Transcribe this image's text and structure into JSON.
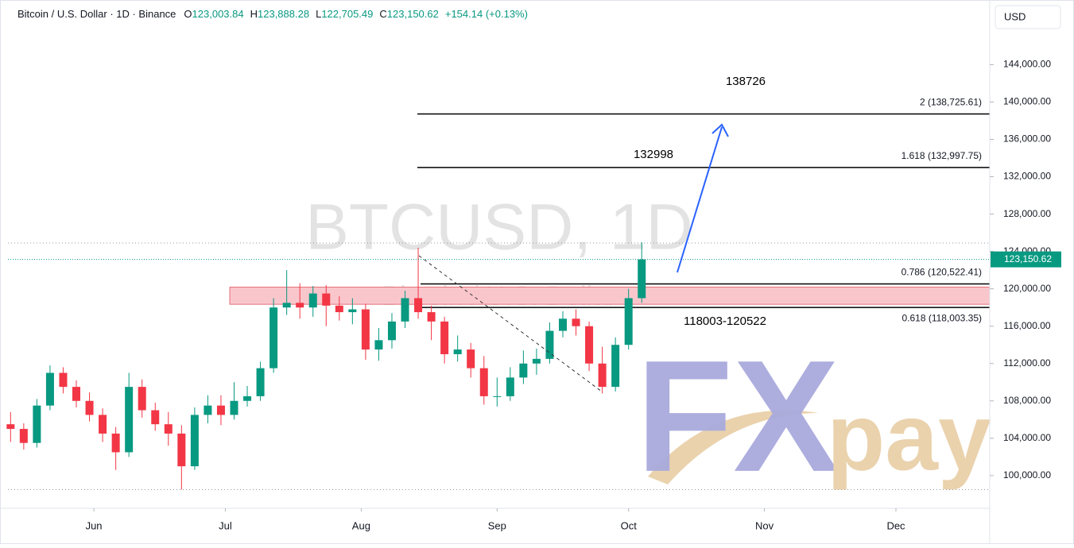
{
  "header": {
    "title": "Bitcoin / U.S. Dollar · 1D · Binance",
    "ohlc": [
      {
        "key": "O",
        "value": "123,003.84"
      },
      {
        "key": "H",
        "value": "123,888.28"
      },
      {
        "key": "L",
        "value": "122,705.49"
      },
      {
        "key": "C",
        "value": "123,150.62"
      }
    ],
    "change": "+154.14 (+0.13%)"
  },
  "currency": "USD",
  "watermark": {
    "symbol": "BTCUSD, 1D",
    "name": "Bitcoin / U.S. Dollar"
  },
  "logo": {
    "left": "FX",
    "right": "pay"
  },
  "chart_data": {
    "type": "candlestick",
    "up_color": "#089981",
    "down_color": "#f23645",
    "x": [
      0,
      3,
      6,
      9,
      12,
      15,
      18,
      21,
      24,
      27,
      30,
      33,
      36,
      39,
      42,
      45,
      48,
      51,
      54,
      57,
      60,
      63,
      66,
      69,
      72,
      75,
      78,
      81,
      84,
      87,
      90,
      93,
      96,
      99,
      102,
      105,
      108,
      111,
      114,
      117,
      120,
      123,
      126,
      129,
      132,
      135,
      138,
      141,
      144
    ],
    "open": [
      105500,
      105000,
      103500,
      107500,
      111000,
      109500,
      108000,
      106500,
      104500,
      102500,
      109500,
      107000,
      105500,
      104500,
      101000,
      106500,
      107500,
      106500,
      108000,
      108500,
      111500,
      118000,
      118500,
      118000,
      119500,
      118200,
      117500,
      117800,
      113500,
      114500,
      116500,
      119000,
      117500,
      116500,
      113000,
      113500,
      111500,
      108500,
      108500,
      110500,
      112000,
      112500,
      115500,
      116800,
      116000,
      112000,
      109500,
      114000,
      119000
    ],
    "high": [
      106800,
      105600,
      108200,
      111800,
      111600,
      110200,
      108900,
      107200,
      105200,
      111000,
      110300,
      107800,
      106800,
      105400,
      107300,
      108600,
      108600,
      110000,
      109600,
      112200,
      119000,
      122000,
      120600,
      120300,
      120400,
      119200,
      119000,
      118400,
      115800,
      117400,
      119800,
      124400,
      118200,
      117000,
      115000,
      114200,
      112800,
      110500,
      111600,
      113400,
      113600,
      116400,
      117600,
      117800,
      116500,
      113800,
      114800,
      120000,
      125000
    ],
    "low": [
      103600,
      102800,
      103000,
      107000,
      108800,
      107300,
      105800,
      103600,
      100600,
      102000,
      106200,
      104800,
      103200,
      98500,
      100600,
      105600,
      105400,
      106000,
      107400,
      108000,
      111000,
      117200,
      116800,
      117000,
      116000,
      116600,
      116200,
      112400,
      112300,
      113600,
      115800,
      116800,
      114500,
      112000,
      112200,
      110500,
      107600,
      107400,
      108000,
      109800,
      110800,
      112000,
      114800,
      115000,
      111200,
      108800,
      109000,
      113500,
      118500
    ],
    "close": [
      105000,
      103500,
      107500,
      111000,
      109500,
      108000,
      106500,
      104500,
      102500,
      109500,
      107000,
      105500,
      104500,
      101000,
      106500,
      107500,
      106500,
      108000,
      108500,
      111500,
      118000,
      118500,
      118000,
      119500,
      118200,
      117500,
      117800,
      113500,
      114500,
      116500,
      119000,
      117500,
      116500,
      113000,
      113500,
      111500,
      108500,
      108500,
      110500,
      112000,
      112500,
      115500,
      116800,
      116000,
      112000,
      109500,
      114000,
      119000,
      123150.62
    ],
    "xlim": [
      -0.6,
      223.4
    ],
    "xticks": [
      {
        "value": 19,
        "label": "Jun"
      },
      {
        "value": 49,
        "label": "Jul"
      },
      {
        "value": 80,
        "label": "Aug"
      },
      {
        "value": 111,
        "label": "Sep"
      },
      {
        "value": 141,
        "label": "Oct"
      },
      {
        "value": 172,
        "label": "Nov"
      },
      {
        "value": 202,
        "label": "Dec"
      }
    ],
    "ylim": [
      96500,
      150500
    ],
    "yticks": [
      {
        "value": 100000,
        "label": "100,000.00"
      },
      {
        "value": 104000,
        "label": "104,000.00"
      },
      {
        "value": 108000,
        "label": "108,000.00"
      },
      {
        "value": 112000,
        "label": "112,000.00"
      },
      {
        "value": 116000,
        "label": "116,000.00"
      },
      {
        "value": 120000,
        "label": "120,000.00"
      },
      {
        "value": 124000,
        "label": "124,000.00"
      },
      {
        "value": 128000,
        "label": "128,000.00"
      },
      {
        "value": 132000,
        "label": "132,000.00"
      },
      {
        "value": 136000,
        "label": "136,000.00"
      },
      {
        "value": 140000,
        "label": "140,000.00"
      },
      {
        "value": 144000,
        "label": "144,000.00"
      }
    ],
    "last_price": {
      "value": 123150.62,
      "label": "123,150.62",
      "color": "#089981"
    },
    "range_lines": [
      124900,
      98500
    ],
    "fib_levels": [
      {
        "value": 138725.61,
        "label": "2 (138,725.61)"
      },
      {
        "value": 132997.75,
        "label": "1.618 (132,997.75)"
      },
      {
        "value": 120522.41,
        "label": "0.786 (120,522.41)"
      },
      {
        "value": 118003.35,
        "label": "0.618 (118,003.35)"
      }
    ],
    "annotations": [
      "138726",
      "132998",
      "118003-120522"
    ]
  }
}
